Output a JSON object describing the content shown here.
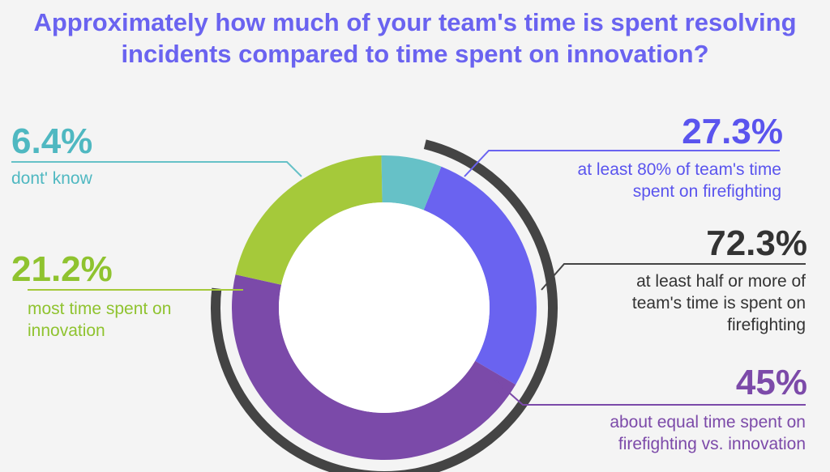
{
  "chart_data": {
    "type": "pie",
    "title": "Approximately how much of your team's time is spent resolving incidents compared to time spent on innovation?",
    "slices": [
      {
        "value": "27.3%",
        "percent": 27.3,
        "label": "at least 80% of team's time spent on firefighting",
        "color": "#6a63f0"
      },
      {
        "value": "45%",
        "percent": 45,
        "label": "about equal time spent on firefighting vs. innovation",
        "color": "#7b4aa9"
      },
      {
        "value": "21.2%",
        "percent": 21.2,
        "label": "most time spent on innovation",
        "color": "#a5c93a"
      },
      {
        "value": "6.4%",
        "percent": 6.4,
        "label": "dont' know",
        "color": "#66c1c7"
      }
    ],
    "summary": {
      "value": "72.3%",
      "percent": 72.3,
      "label": "at least half or more of team's time is spent on firefighting",
      "color": "#444444"
    }
  }
}
